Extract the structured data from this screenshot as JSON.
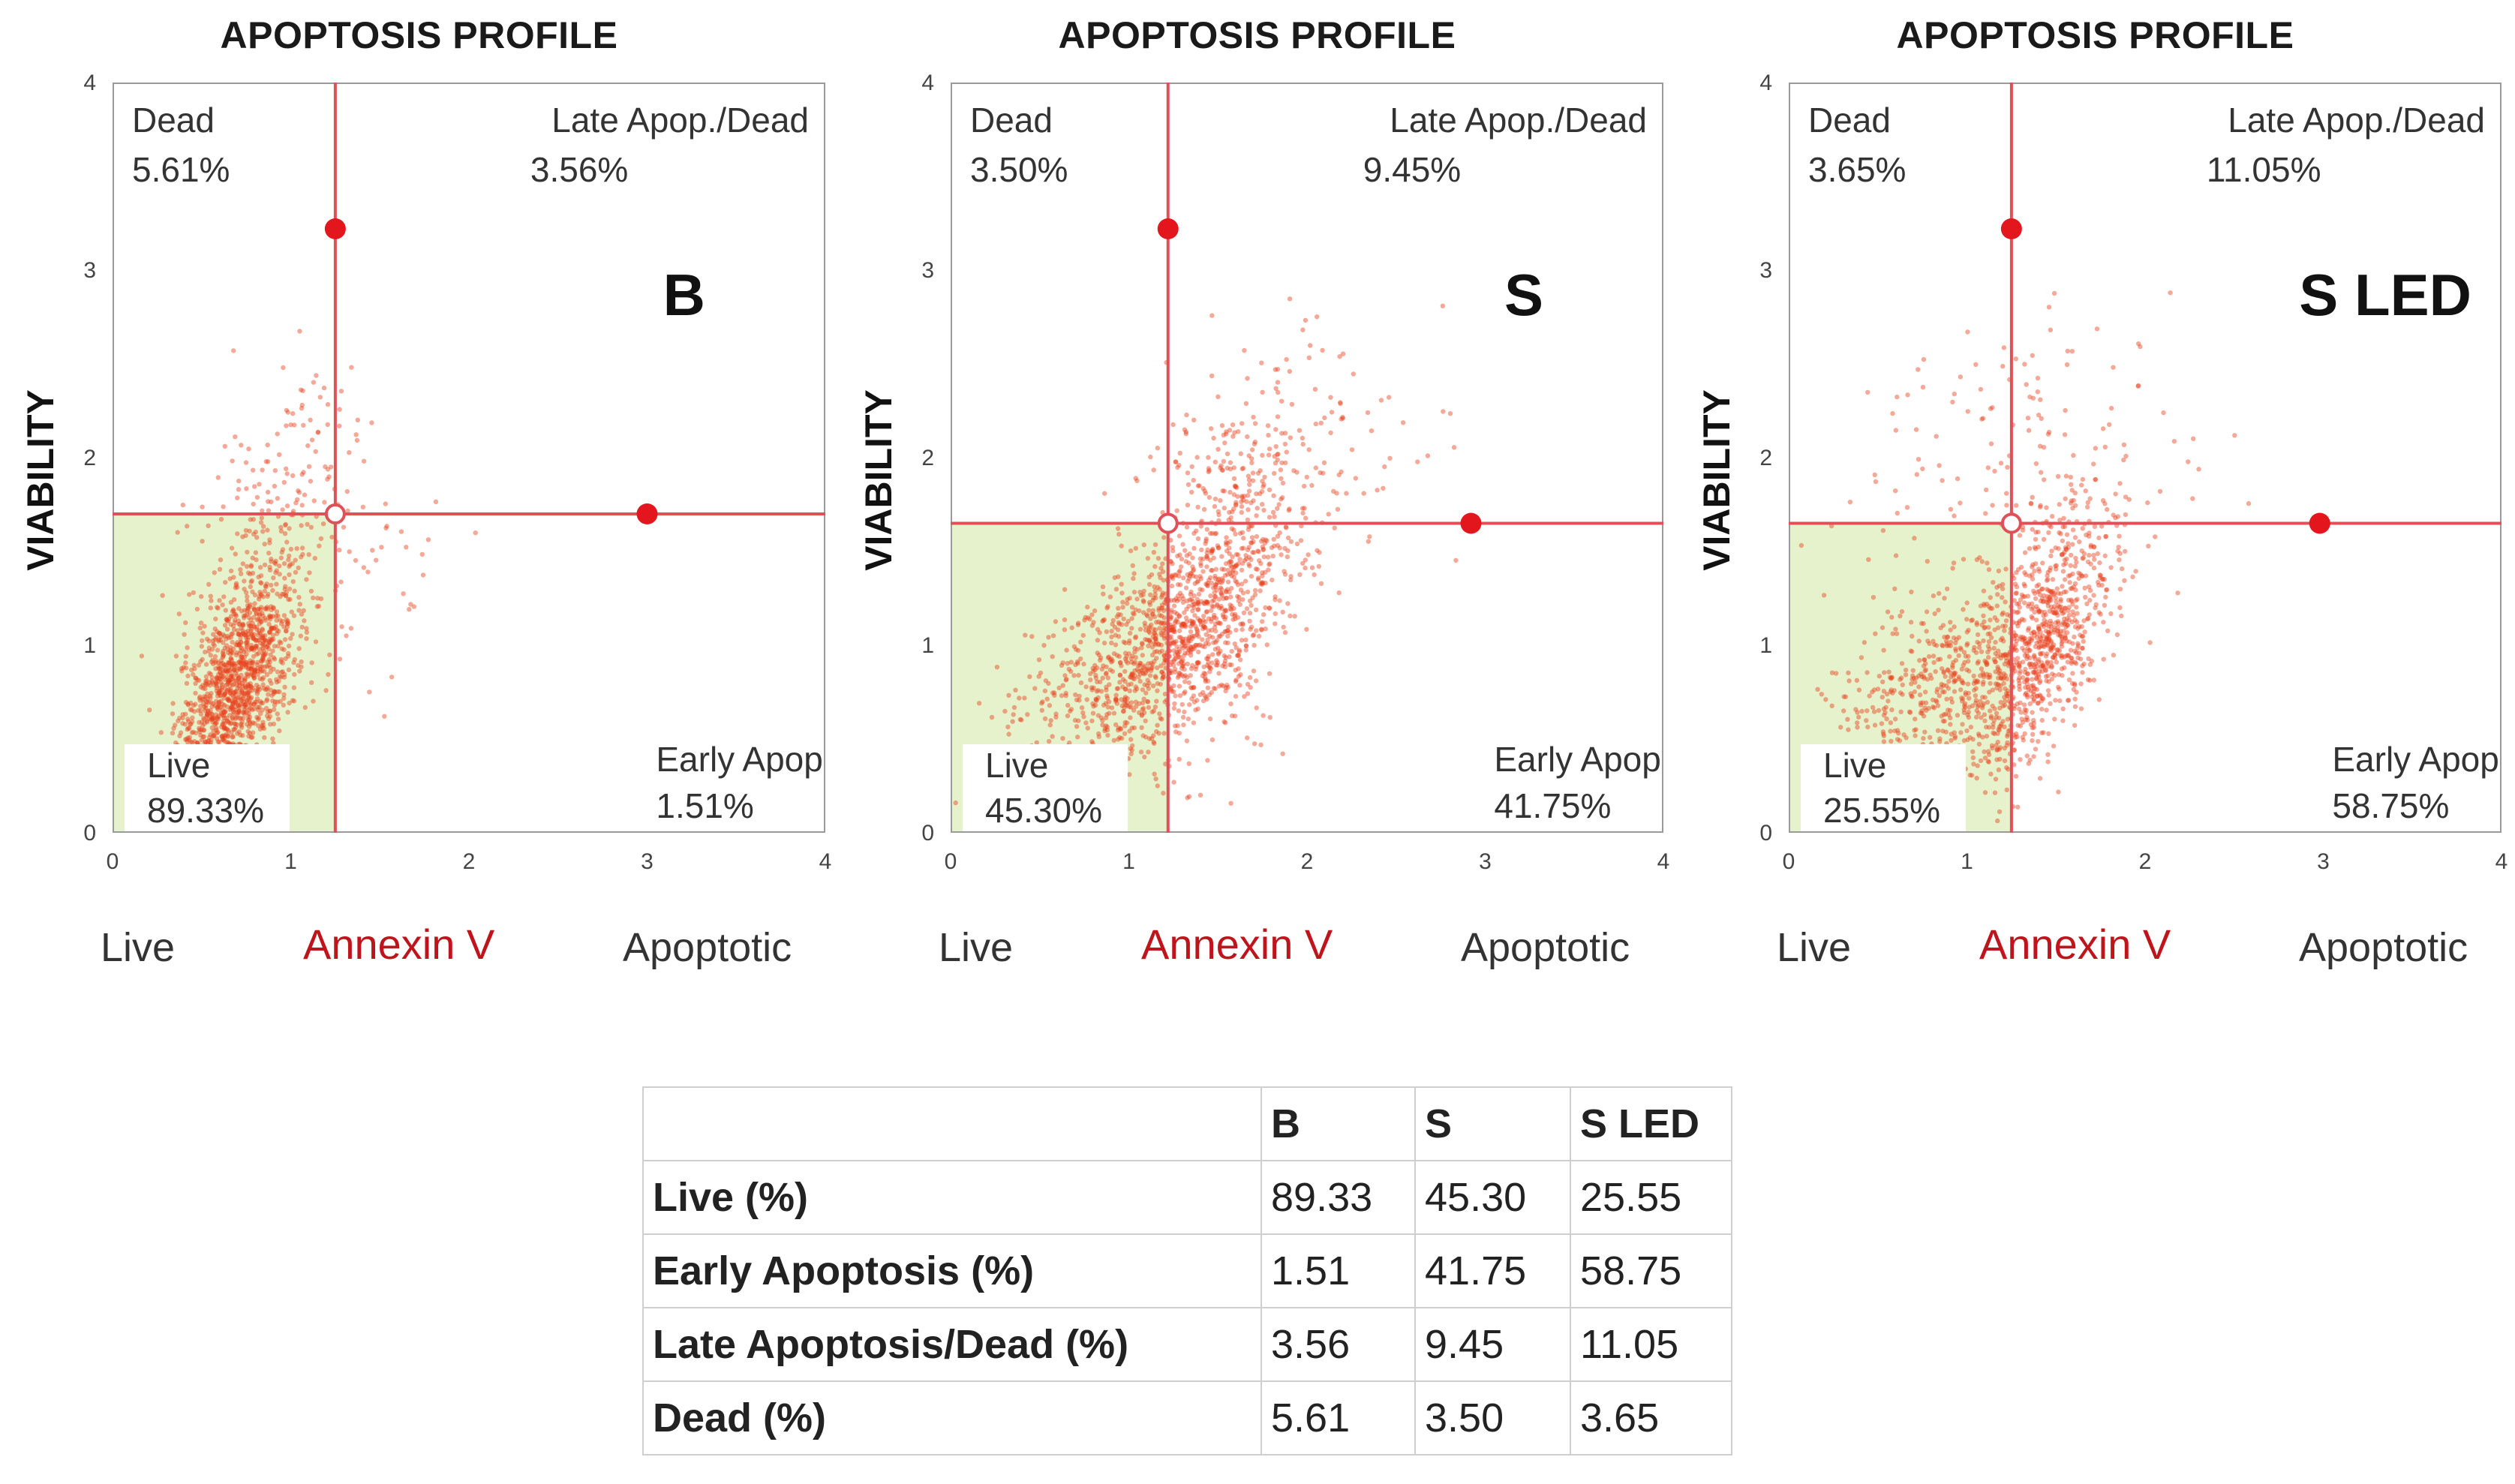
{
  "chart_data": [
    {
      "type": "scatter",
      "title": "APOPTOSIS PROFILE",
      "sample": "B",
      "xlabel_left": "Live",
      "xlabel_center": "Annexin V",
      "xlabel_right": "Apoptotic",
      "ylabel": "VIABILITY",
      "xlim": [
        0,
        4
      ],
      "ylim": [
        0,
        4
      ],
      "xticks": [
        "0",
        "1",
        "2",
        "3",
        "4"
      ],
      "yticks": [
        "0",
        "1",
        "2",
        "3",
        "4"
      ],
      "gate": {
        "x": 1.25,
        "y": 1.7
      },
      "markers": [
        {
          "x": 1.25,
          "y": 3.22
        },
        {
          "x": 3.0,
          "y": 1.7
        }
      ],
      "quadrants": {
        "dead": {
          "label": "Dead",
          "value": "5.61%"
        },
        "late": {
          "label": "Late Apop./Dead",
          "value": "3.56%"
        },
        "live": {
          "label": "Live",
          "value": "89.33%"
        },
        "early": {
          "label": "Early Apop.",
          "value": "1.51%"
        }
      },
      "clusters": [
        {
          "cx": 0.7,
          "cy": 0.8,
          "sx": 0.17,
          "sy": 0.3,
          "rho": 0.55,
          "n": 1300
        },
        {
          "cx": 0.95,
          "cy": 1.8,
          "sx": 0.25,
          "sy": 0.3,
          "rho": 0.4,
          "n": 170
        },
        {
          "cx": 1.3,
          "cy": 1.3,
          "sx": 0.3,
          "sy": 0.35,
          "rho": 0.3,
          "n": 50
        }
      ]
    },
    {
      "type": "scatter",
      "title": "APOPTOSIS PROFILE",
      "sample": "S",
      "xlabel_left": "Live",
      "xlabel_center": "Annexin V",
      "xlabel_right": "Apoptotic",
      "ylabel": "VIABILITY",
      "xlim": [
        0,
        4
      ],
      "ylim": [
        0,
        4
      ],
      "xticks": [
        "0",
        "1",
        "2",
        "3",
        "4"
      ],
      "yticks": [
        "0",
        "1",
        "2",
        "3",
        "4"
      ],
      "gate": {
        "x": 1.22,
        "y": 1.65
      },
      "markers": [
        {
          "x": 1.22,
          "y": 3.22
        },
        {
          "x": 2.92,
          "y": 1.65
        }
      ],
      "quadrants": {
        "dead": {
          "label": "Dead",
          "value": "3.50%"
        },
        "late": {
          "label": "Late Apop./Dead",
          "value": "9.45%"
        },
        "live": {
          "label": "Live",
          "value": "45.30%"
        },
        "early": {
          "label": "Early Apop.",
          "value": "41.75%"
        }
      },
      "clusters": [
        {
          "cx": 1.1,
          "cy": 0.95,
          "sx": 0.35,
          "sy": 0.3,
          "rho": 0.6,
          "n": 900
        },
        {
          "cx": 1.5,
          "cy": 1.3,
          "sx": 0.25,
          "sy": 0.45,
          "rho": 0.5,
          "n": 600
        },
        {
          "cx": 1.8,
          "cy": 2.0,
          "sx": 0.45,
          "sy": 0.35,
          "rho": 0.3,
          "n": 130
        }
      ]
    },
    {
      "type": "scatter",
      "title": "APOPTOSIS PROFILE",
      "sample": "S LED",
      "xlabel_left": "Live",
      "xlabel_center": "Annexin V",
      "xlabel_right": "Apoptotic",
      "ylabel": "VIABILITY",
      "xlim": [
        0,
        4
      ],
      "ylim": [
        0,
        4
      ],
      "xticks": [
        "0",
        "1",
        "2",
        "3",
        "4"
      ],
      "yticks": [
        "0",
        "1",
        "2",
        "3",
        "4"
      ],
      "gate": {
        "x": 1.25,
        "y": 1.65
      },
      "markers": [
        {
          "x": 1.25,
          "y": 3.22
        },
        {
          "x": 2.98,
          "y": 1.65
        }
      ],
      "quadrants": {
        "dead": {
          "label": "Dead",
          "value": "3.65%"
        },
        "late": {
          "label": "Late Apop./Dead",
          "value": "11.05%"
        },
        "live": {
          "label": "Live",
          "value": "25.55%"
        },
        "early": {
          "label": "Early Apop.",
          "value": "58.75%"
        }
      },
      "clusters": [
        {
          "cx": 1.4,
          "cy": 1.0,
          "sx": 0.22,
          "sy": 0.4,
          "rho": 0.65,
          "n": 900
        },
        {
          "cx": 0.85,
          "cy": 0.8,
          "sx": 0.3,
          "sy": 0.25,
          "rho": 0.3,
          "n": 450
        },
        {
          "cx": 1.3,
          "cy": 1.9,
          "sx": 0.45,
          "sy": 0.45,
          "rho": 0.2,
          "n": 150
        }
      ]
    }
  ],
  "table": {
    "headers": [
      "",
      "B",
      "S",
      "S LED"
    ],
    "rows": [
      {
        "label": "Live (%)",
        "values": [
          "89.33",
          "45.30",
          "25.55"
        ]
      },
      {
        "label": "Early Apoptosis (%)",
        "values": [
          "1.51",
          "41.75",
          "58.75"
        ]
      },
      {
        "label": "Late Apoptosis/Dead (%)",
        "values": [
          "3.56",
          "9.45",
          "11.05"
        ]
      },
      {
        "label": "Dead (%)",
        "values": [
          "5.61",
          "3.50",
          "3.65"
        ]
      }
    ]
  },
  "colors": {
    "gate_line": "#e05058",
    "marker": "#e3161e",
    "dots": "#e8401c",
    "live_fill": "#e6f2cc",
    "axis_label_red": "#c0141c"
  }
}
